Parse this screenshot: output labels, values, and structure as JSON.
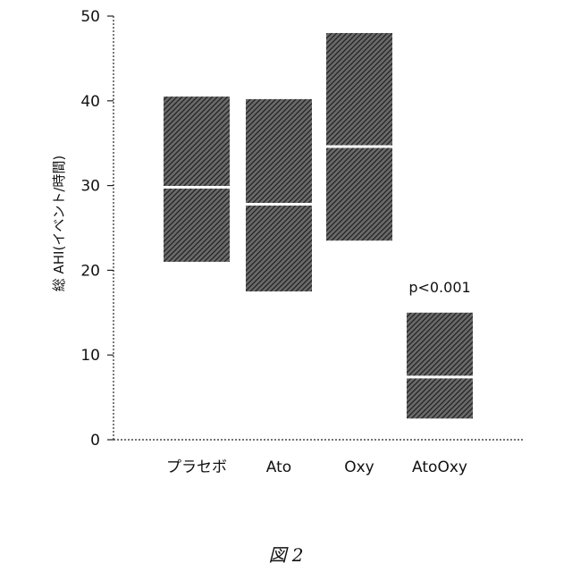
{
  "chart_data": {
    "type": "box",
    "ylabel": "総 AHI(イベント/時間)",
    "ylim": [
      0,
      50
    ],
    "yticks": [
      "0",
      "10",
      "20",
      "30",
      "40",
      "50"
    ],
    "categories": [
      "プラセボ",
      "Ato",
      "Oxy",
      "AtoOxy"
    ],
    "boxes": [
      {
        "low": 21.0,
        "median": 29.8,
        "high": 40.5
      },
      {
        "low": 17.5,
        "median": 27.8,
        "high": 40.2
      },
      {
        "low": 23.5,
        "median": 34.6,
        "high": 48.0
      },
      {
        "low": 2.5,
        "median": 7.4,
        "high": 15.0
      }
    ],
    "annotation": {
      "text": "p<0.001",
      "category": "AtoOxy"
    },
    "grid": false,
    "legend": "none",
    "colors": {
      "box_fill": "#3a3a3a",
      "median_line": "#ffffff",
      "axis": "#222222"
    }
  },
  "caption": "図 2"
}
